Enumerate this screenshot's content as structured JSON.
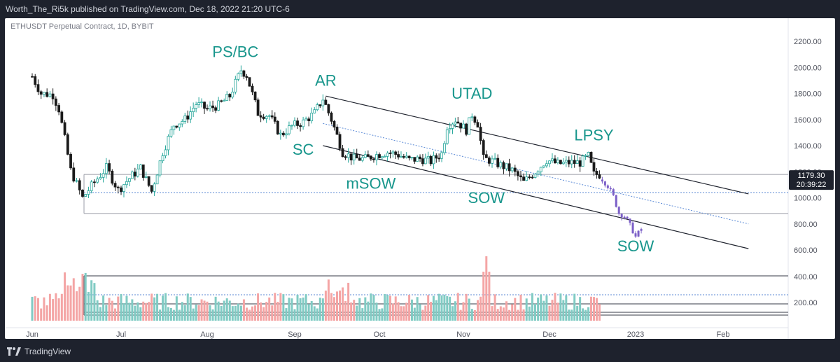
{
  "header": {
    "publish_line": "Worth_The_Ri5k published on TradingView.com, Dec 18, 2022 21:20 UTC-6"
  },
  "symbol": {
    "label": "ETHUSDT Perpetual Contract, 1D, BYBIT"
  },
  "footer": {
    "brand": "TradingView",
    "logo_icon": "tradingview-logo-icon"
  },
  "price_label": {
    "value": "1179.30",
    "countdown": "20:39:22"
  },
  "colors": {
    "up": "#26a69a",
    "down": "#1a1a1a",
    "projection": "#7b5fc7",
    "annotation": "#18968c",
    "vol_up": "#81cbc4",
    "vol_down": "#f4a5a5"
  },
  "chart_data": {
    "type": "candlestick",
    "title": "",
    "xlabel": "",
    "ylabel": "",
    "ylim": [
      80,
      2300
    ],
    "y_ticks": [
      "2200.00",
      "2000.00",
      "1800.00",
      "1600.00",
      "1400.00",
      "1200.00",
      "1000.00",
      "800.00",
      "600.00",
      "400.00",
      "200.00"
    ],
    "x_ticks": [
      "Jun",
      "Jul",
      "Aug",
      "Sep",
      "Oct",
      "Nov",
      "Dec",
      "2023",
      "Feb"
    ],
    "price_path": [
      [
        "2022-06-01",
        1930
      ],
      [
        "2022-06-04",
        1800
      ],
      [
        "2022-06-08",
        1790
      ],
      [
        "2022-06-10",
        1680
      ],
      [
        "2022-06-12",
        1450
      ],
      [
        "2022-06-14",
        1210
      ],
      [
        "2022-06-18",
        1000
      ],
      [
        "2022-06-22",
        1120
      ],
      [
        "2022-06-26",
        1230
      ],
      [
        "2022-06-30",
        1060
      ],
      [
        "2022-07-04",
        1150
      ],
      [
        "2022-07-08",
        1230
      ],
      [
        "2022-07-12",
        1050
      ],
      [
        "2022-07-16",
        1350
      ],
      [
        "2022-07-20",
        1560
      ],
      [
        "2022-07-24",
        1600
      ],
      [
        "2022-07-28",
        1720
      ],
      [
        "2022-08-01",
        1680
      ],
      [
        "2022-08-05",
        1710
      ],
      [
        "2022-08-09",
        1780
      ],
      [
        "2022-08-13",
        1980
      ],
      [
        "2022-08-15",
        1940
      ],
      [
        "2022-08-19",
        1650
      ],
      [
        "2022-08-23",
        1630
      ],
      [
        "2022-08-27",
        1480
      ],
      [
        "2022-08-31",
        1550
      ],
      [
        "2022-09-04",
        1580
      ],
      [
        "2022-09-08",
        1650
      ],
      [
        "2022-09-11",
        1760
      ],
      [
        "2022-09-14",
        1600
      ],
      [
        "2022-09-18",
        1350
      ],
      [
        "2022-09-22",
        1300
      ],
      [
        "2022-09-26",
        1300
      ],
      [
        "2022-09-30",
        1330
      ],
      [
        "2022-10-04",
        1350
      ],
      [
        "2022-10-08",
        1330
      ],
      [
        "2022-10-12",
        1290
      ],
      [
        "2022-10-16",
        1300
      ],
      [
        "2022-10-20",
        1280
      ],
      [
        "2022-10-24",
        1340
      ],
      [
        "2022-10-26",
        1550
      ],
      [
        "2022-10-29",
        1600
      ],
      [
        "2022-11-02",
        1520
      ],
      [
        "2022-11-04",
        1640
      ],
      [
        "2022-11-06",
        1570
      ],
      [
        "2022-11-08",
        1300
      ],
      [
        "2022-11-10",
        1290
      ],
      [
        "2022-11-14",
        1250
      ],
      [
        "2022-11-18",
        1210
      ],
      [
        "2022-11-22",
        1120
      ],
      [
        "2022-11-26",
        1200
      ],
      [
        "2022-11-30",
        1290
      ],
      [
        "2022-12-04",
        1260
      ],
      [
        "2022-12-08",
        1270
      ],
      [
        "2022-12-12",
        1270
      ],
      [
        "2022-12-15",
        1320
      ],
      [
        "2022-12-17",
        1180
      ],
      [
        "2022-12-19",
        1179
      ]
    ],
    "projection_path": [
      [
        "2022-12-20",
        1140
      ],
      [
        "2022-12-22",
        1090
      ],
      [
        "2022-12-24",
        1010
      ],
      [
        "2022-12-26",
        880
      ],
      [
        "2022-12-28",
        860
      ],
      [
        "2022-12-30",
        790
      ],
      [
        "2023-01-01",
        700
      ],
      [
        "2023-01-03",
        760
      ]
    ],
    "volume_profile": "daily volume bars; spikes near Jun 18 and Nov 9",
    "annotations": [
      {
        "text": "PS/BC",
        "date": "2022-08-11",
        "price": 2080
      },
      {
        "text": "AR",
        "date": "2022-09-12",
        "price": 1860
      },
      {
        "text": "SC",
        "date": "2022-09-04",
        "price": 1330
      },
      {
        "text": "mSOW",
        "date": "2022-09-28",
        "price": 1070
      },
      {
        "text": "UTAD",
        "date": "2022-11-04",
        "price": 1760
      },
      {
        "text": "SOW",
        "date": "2022-11-09",
        "price": 960
      },
      {
        "text": "LPSY",
        "date": "2022-12-17",
        "price": 1440
      },
      {
        "text": "SOW",
        "date": "2023-01-01",
        "price": 590
      }
    ],
    "horizontal_levels": [
      1179.3,
      1040,
      880
    ],
    "channel": {
      "upper": [
        [
          "2022-09-12",
          1780
        ],
        [
          "2023-02-10",
          1030
        ]
      ],
      "middle": [
        [
          "2022-09-11",
          1570
        ],
        [
          "2023-02-10",
          800
        ]
      ],
      "lower": [
        [
          "2022-09-11",
          1400
        ],
        [
          "2023-02-10",
          610
        ]
      ]
    },
    "grid": false,
    "legend": "none"
  }
}
